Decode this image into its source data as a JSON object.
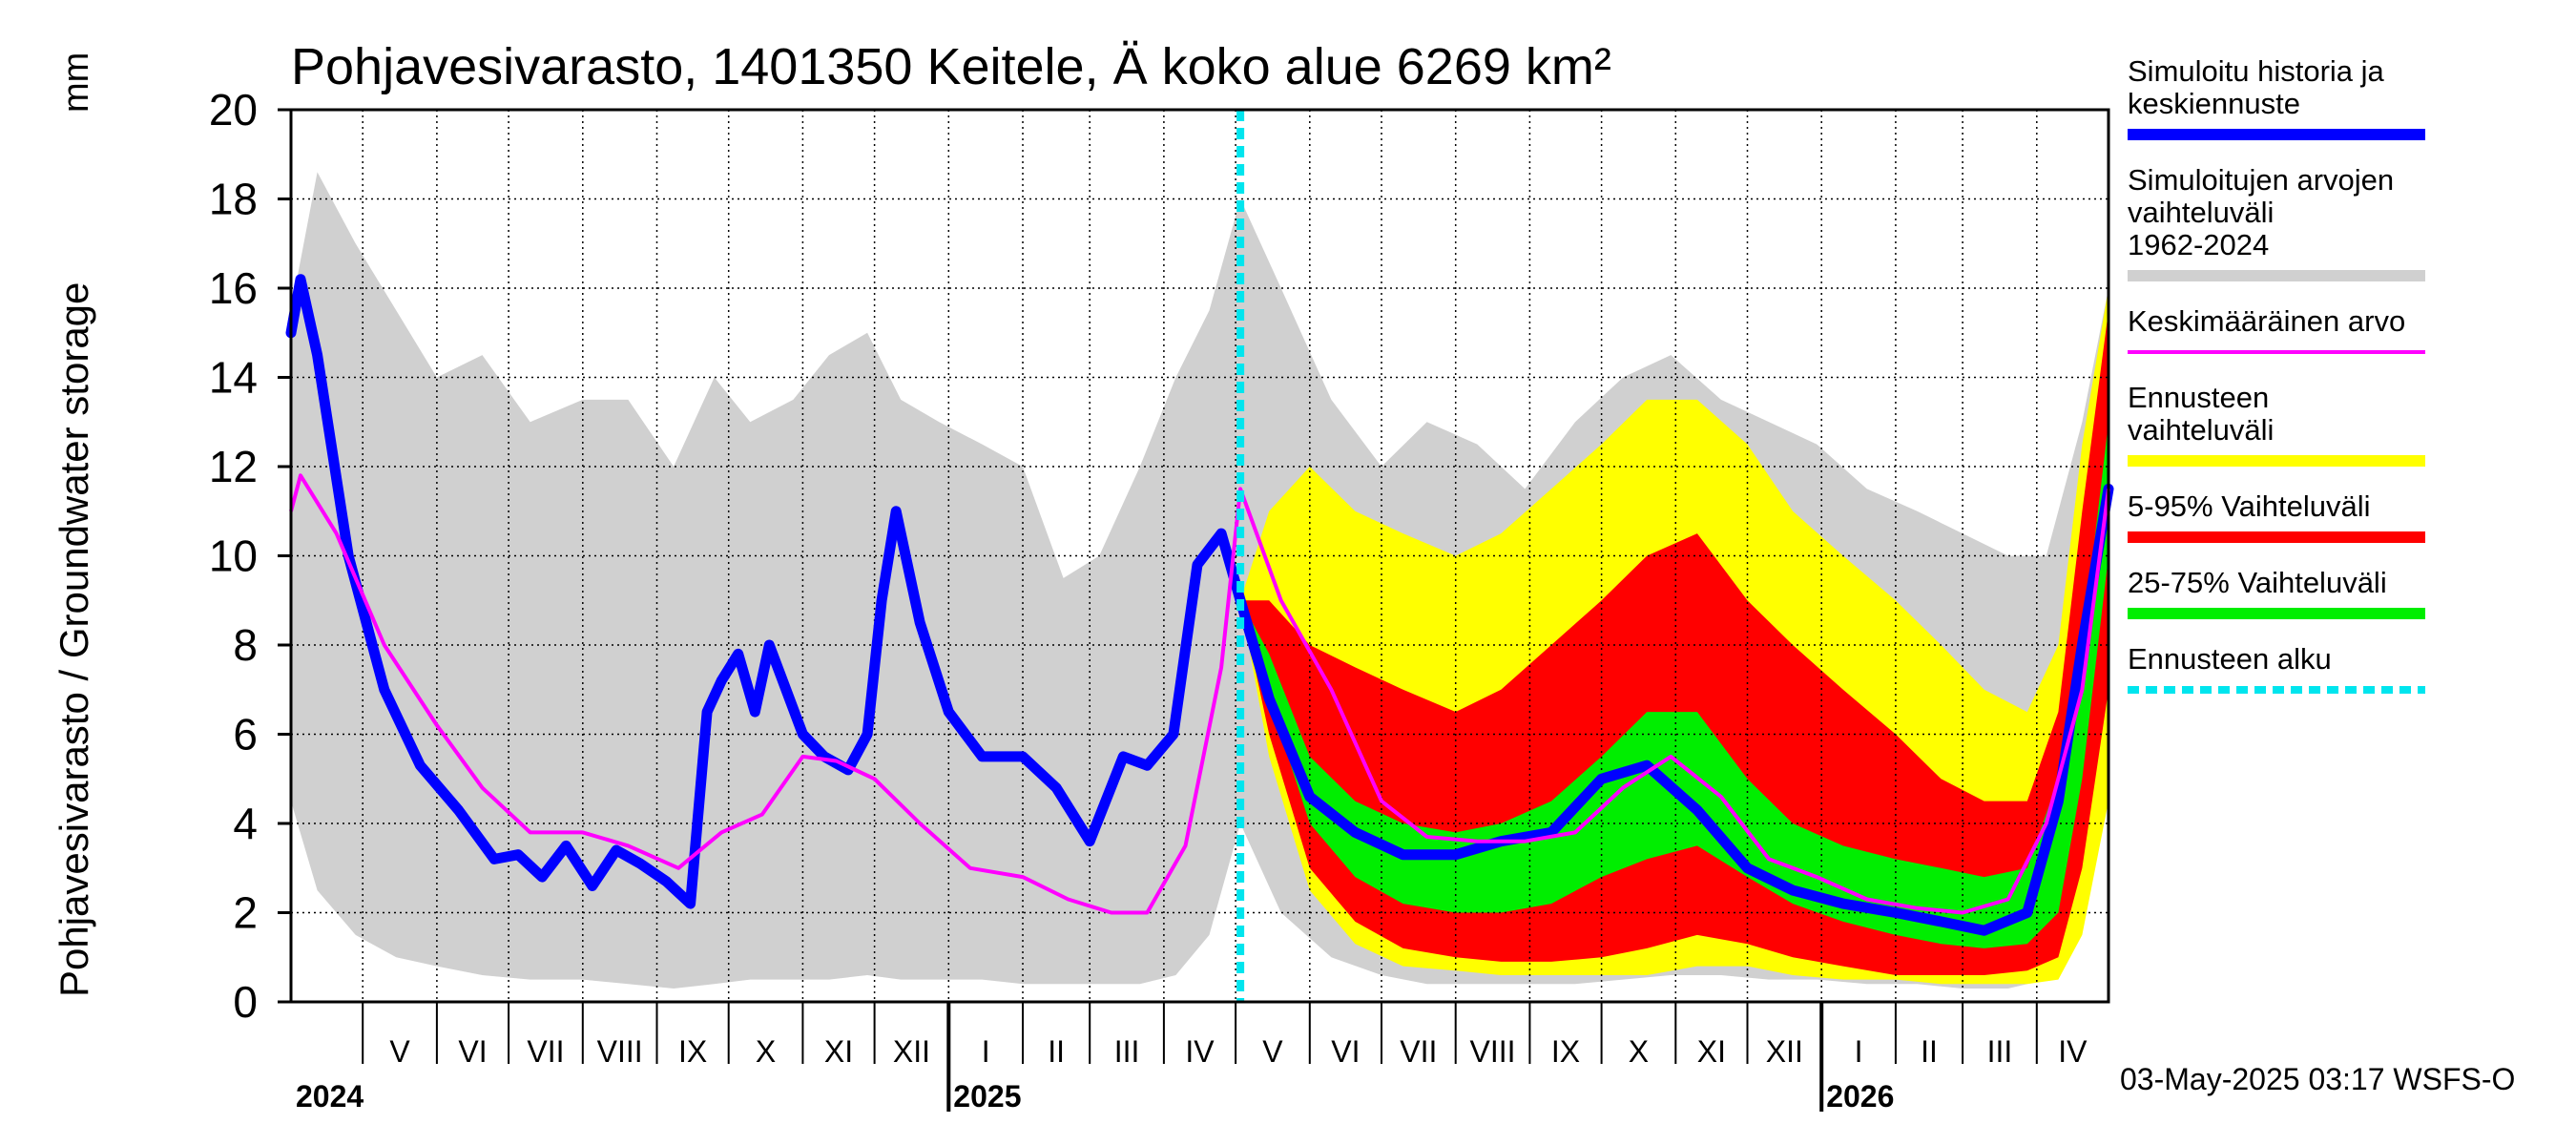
{
  "chart_data": {
    "type": "area",
    "title": "Pohjavesivarasto, 1401350 Keitele, Ä koko alue 6269 km²",
    "ylabel": "Pohjavesivarasto / Groundwater storage",
    "yunit": "mm",
    "ylim": [
      0,
      20
    ],
    "yticks": [
      "0",
      "2",
      "4",
      "6",
      "8",
      "10",
      "12",
      "14",
      "16",
      "18",
      "20"
    ],
    "xlim": [
      "2024-04-01",
      "2026-05-01"
    ],
    "grid": true,
    "legend_position": "right",
    "forecast_start": "2025-05-03",
    "months": [
      {
        "label": "V",
        "date": "2024-05-01"
      },
      {
        "label": "VI",
        "date": "2024-06-01"
      },
      {
        "label": "VII",
        "date": "2024-07-01"
      },
      {
        "label": "VIII",
        "date": "2024-08-01"
      },
      {
        "label": "IX",
        "date": "2024-09-01"
      },
      {
        "label": "X",
        "date": "2024-10-01"
      },
      {
        "label": "XI",
        "date": "2024-11-01"
      },
      {
        "label": "XII",
        "date": "2024-12-01"
      },
      {
        "label": "I",
        "date": "2025-01-01"
      },
      {
        "label": "II",
        "date": "2025-02-01"
      },
      {
        "label": "III",
        "date": "2025-03-01"
      },
      {
        "label": "IV",
        "date": "2025-04-01"
      },
      {
        "label": "V",
        "date": "2025-05-01"
      },
      {
        "label": "VI",
        "date": "2025-06-01"
      },
      {
        "label": "VII",
        "date": "2025-07-01"
      },
      {
        "label": "VIII",
        "date": "2025-08-01"
      },
      {
        "label": "IX",
        "date": "2025-09-01"
      },
      {
        "label": "X",
        "date": "2025-10-01"
      },
      {
        "label": "XI",
        "date": "2025-11-01"
      },
      {
        "label": "XII",
        "date": "2025-12-01"
      },
      {
        "label": "I",
        "date": "2026-01-01"
      },
      {
        "label": "II",
        "date": "2026-02-01"
      },
      {
        "label": "III",
        "date": "2026-03-01"
      },
      {
        "label": "IV",
        "date": "2026-04-01"
      }
    ],
    "years": [
      {
        "label": "2024",
        "date": "2024-04-01"
      },
      {
        "label": "2025",
        "date": "2025-01-01"
      },
      {
        "label": "2026",
        "date": "2026-01-01"
      }
    ],
    "legend": [
      {
        "label": "Simuloitu historia ja keskiennuste",
        "color": "#0000ff",
        "style": "line"
      },
      {
        "label": "Simuloitujen arvojen vaihteluväli 1962-2024",
        "color": "#d0d0d0",
        "style": "band"
      },
      {
        "label": "Keskimääräinen arvo",
        "color": "#ff00ff",
        "style": "thin"
      },
      {
        "label": "Ennusteen vaihteluväli",
        "color": "#ffff00",
        "style": "band"
      },
      {
        "label": "5-95% Vaihteluväli",
        "color": "#ff0000",
        "style": "band"
      },
      {
        "label": "25-75% Vaihteluväli",
        "color": "#00ee00",
        "style": "band"
      },
      {
        "label": "Ennusteen alku",
        "color": "#00e5ee",
        "style": "dashed"
      }
    ],
    "series": {
      "hist_range": {
        "dates": [
          "2024-04-01",
          "2024-04-12",
          "2024-04-28",
          "2024-05-15",
          "2024-06-01",
          "2024-06-20",
          "2024-07-10",
          "2024-08-01",
          "2024-08-20",
          "2024-09-08",
          "2024-09-25",
          "2024-10-10",
          "2024-10-28",
          "2024-11-12",
          "2024-11-28",
          "2024-12-12",
          "2024-12-28",
          "2025-01-15",
          "2025-02-01",
          "2025-02-18",
          "2025-03-05",
          "2025-03-22",
          "2025-04-06",
          "2025-04-20",
          "2025-05-03",
          "2025-05-20",
          "2025-06-10",
          "2025-07-01",
          "2025-07-20",
          "2025-08-10",
          "2025-08-30",
          "2025-09-20",
          "2025-10-10",
          "2025-10-30",
          "2025-11-20",
          "2025-12-10",
          "2025-12-30",
          "2026-01-20",
          "2026-02-10",
          "2026-03-01",
          "2026-03-20",
          "2026-04-05",
          "2026-04-20",
          "2026-05-01"
        ],
        "low": [
          4.5,
          2.5,
          1.5,
          1.0,
          0.8,
          0.6,
          0.5,
          0.5,
          0.4,
          0.3,
          0.4,
          0.5,
          0.5,
          0.5,
          0.6,
          0.5,
          0.5,
          0.5,
          0.4,
          0.4,
          0.4,
          0.4,
          0.6,
          1.5,
          4.0,
          2.0,
          1.0,
          0.6,
          0.4,
          0.4,
          0.4,
          0.4,
          0.5,
          0.6,
          0.6,
          0.5,
          0.5,
          0.4,
          0.4,
          0.3,
          0.3,
          0.5,
          2.5,
          5.0
        ],
        "high": [
          15.5,
          18.6,
          17.0,
          15.5,
          14.0,
          14.5,
          13.0,
          13.5,
          13.5,
          12.0,
          14.0,
          13.0,
          13.5,
          14.5,
          15.0,
          13.5,
          13.0,
          12.5,
          12.0,
          9.5,
          10.0,
          12.0,
          14.0,
          15.5,
          18.0,
          16.0,
          13.5,
          12.0,
          13.0,
          12.5,
          11.5,
          13.0,
          14.0,
          14.5,
          13.5,
          13.0,
          12.5,
          11.5,
          11.0,
          10.5,
          10.0,
          10.0,
          13.0,
          16.0
        ]
      },
      "forecast": {
        "dates": [
          "2025-05-03",
          "2025-05-15",
          "2025-06-01",
          "2025-06-20",
          "2025-07-10",
          "2025-08-01",
          "2025-08-20",
          "2025-09-10",
          "2025-10-01",
          "2025-10-20",
          "2025-11-10",
          "2025-12-01",
          "2025-12-20",
          "2026-01-10",
          "2026-02-01",
          "2026-02-20",
          "2026-03-10",
          "2026-03-28",
          "2026-04-10",
          "2026-04-20",
          "2026-05-01"
        ],
        "min": [
          9.0,
          5.5,
          2.5,
          1.3,
          0.8,
          0.7,
          0.6,
          0.6,
          0.6,
          0.6,
          0.8,
          0.8,
          0.6,
          0.5,
          0.5,
          0.4,
          0.4,
          0.4,
          0.5,
          1.5,
          4.5
        ],
        "p5": [
          9.0,
          6.0,
          3.0,
          1.8,
          1.2,
          1.0,
          0.9,
          0.9,
          1.0,
          1.2,
          1.5,
          1.3,
          1.0,
          0.8,
          0.6,
          0.6,
          0.6,
          0.7,
          1.0,
          3.0,
          7.0
        ],
        "p25": [
          9.0,
          6.8,
          4.0,
          2.8,
          2.2,
          2.0,
          2.0,
          2.2,
          2.8,
          3.2,
          3.5,
          2.8,
          2.2,
          1.8,
          1.5,
          1.3,
          1.2,
          1.3,
          2.0,
          5.0,
          10.0
        ],
        "p75": [
          9.0,
          7.8,
          5.5,
          4.5,
          4.0,
          3.8,
          4.0,
          4.5,
          5.5,
          6.5,
          6.5,
          5.0,
          4.0,
          3.5,
          3.2,
          3.0,
          2.8,
          3.0,
          5.0,
          8.0,
          13.0
        ],
        "p95": [
          9.0,
          9.0,
          8.0,
          7.5,
          7.0,
          6.5,
          7.0,
          8.0,
          9.0,
          10.0,
          10.5,
          9.0,
          8.0,
          7.0,
          6.0,
          5.0,
          4.5,
          4.5,
          6.5,
          11.0,
          15.5
        ],
        "max": [
          9.0,
          11.0,
          12.0,
          11.0,
          10.5,
          10.0,
          10.5,
          11.5,
          12.5,
          13.5,
          13.5,
          12.5,
          11.0,
          10.0,
          9.0,
          8.0,
          7.0,
          6.5,
          8.0,
          12.5,
          16.0
        ]
      },
      "simulated": {
        "dates": [
          "2024-04-01",
          "2024-04-05",
          "2024-04-12",
          "2024-04-25",
          "2024-05-10",
          "2024-05-25",
          "2024-06-10",
          "2024-06-25",
          "2024-07-05",
          "2024-07-15",
          "2024-07-25",
          "2024-08-05",
          "2024-08-15",
          "2024-08-25",
          "2024-09-05",
          "2024-09-15",
          "2024-09-22",
          "2024-09-28",
          "2024-10-05",
          "2024-10-12",
          "2024-10-18",
          "2024-10-25",
          "2024-11-01",
          "2024-11-10",
          "2024-11-20",
          "2024-11-28",
          "2024-12-04",
          "2024-12-10",
          "2024-12-20",
          "2025-01-01",
          "2025-01-15",
          "2025-02-01",
          "2025-02-15",
          "2025-03-01",
          "2025-03-15",
          "2025-03-25",
          "2025-04-05",
          "2025-04-15",
          "2025-04-25",
          "2025-05-03",
          "2025-05-15",
          "2025-06-01",
          "2025-06-20",
          "2025-07-10",
          "2025-08-01",
          "2025-08-20",
          "2025-09-10",
          "2025-10-01",
          "2025-10-20",
          "2025-11-10",
          "2025-12-01",
          "2025-12-20",
          "2026-01-10",
          "2026-02-01",
          "2026-02-20",
          "2026-03-10",
          "2026-03-28",
          "2026-04-10",
          "2026-04-20",
          "2026-05-01"
        ],
        "values": [
          15.0,
          16.2,
          14.5,
          10.0,
          7.0,
          5.3,
          4.3,
          3.2,
          3.3,
          2.8,
          3.5,
          2.6,
          3.4,
          3.1,
          2.7,
          2.2,
          6.5,
          7.2,
          7.8,
          6.5,
          8.0,
          7.0,
          6.0,
          5.5,
          5.2,
          6.0,
          9.0,
          11.0,
          8.5,
          6.5,
          5.5,
          5.5,
          4.8,
          3.6,
          5.5,
          5.3,
          6.0,
          9.8,
          10.5,
          9.0,
          6.8,
          4.6,
          3.8,
          3.3,
          3.3,
          3.6,
          3.8,
          5.0,
          5.3,
          4.3,
          3.0,
          2.5,
          2.2,
          2.0,
          1.8,
          1.6,
          2.0,
          4.5,
          8.0,
          11.5
        ]
      },
      "mean": {
        "dates": [
          "2024-04-01",
          "2024-04-05",
          "2024-04-20",
          "2024-05-10",
          "2024-06-01",
          "2024-06-20",
          "2024-07-10",
          "2024-08-01",
          "2024-08-20",
          "2024-09-10",
          "2024-09-28",
          "2024-10-15",
          "2024-11-01",
          "2024-11-15",
          "2024-12-01",
          "2024-12-20",
          "2025-01-10",
          "2025-02-01",
          "2025-02-20",
          "2025-03-10",
          "2025-03-25",
          "2025-04-10",
          "2025-04-25",
          "2025-05-03",
          "2025-05-20",
          "2025-06-10",
          "2025-07-01",
          "2025-07-20",
          "2025-08-10",
          "2025-08-30",
          "2025-09-20",
          "2025-10-10",
          "2025-10-30",
          "2025-11-20",
          "2025-12-10",
          "2025-12-30",
          "2026-01-20",
          "2026-02-10",
          "2026-03-01",
          "2026-03-20",
          "2026-04-05",
          "2026-04-20",
          "2026-05-01"
        ],
        "values": [
          11.0,
          11.8,
          10.5,
          8.0,
          6.2,
          4.8,
          3.8,
          3.8,
          3.5,
          3.0,
          3.8,
          4.2,
          5.5,
          5.4,
          5.0,
          4.0,
          3.0,
          2.8,
          2.3,
          2.0,
          2.0,
          3.5,
          7.5,
          11.5,
          9.0,
          7.0,
          4.5,
          3.7,
          3.6,
          3.6,
          3.8,
          4.8,
          5.5,
          4.6,
          3.2,
          2.8,
          2.3,
          2.1,
          2.0,
          2.3,
          4.0,
          7.0,
          11.5
        ]
      }
    }
  },
  "texts": {
    "timestamp": "03-May-2025 03:17 WSFS-O"
  }
}
